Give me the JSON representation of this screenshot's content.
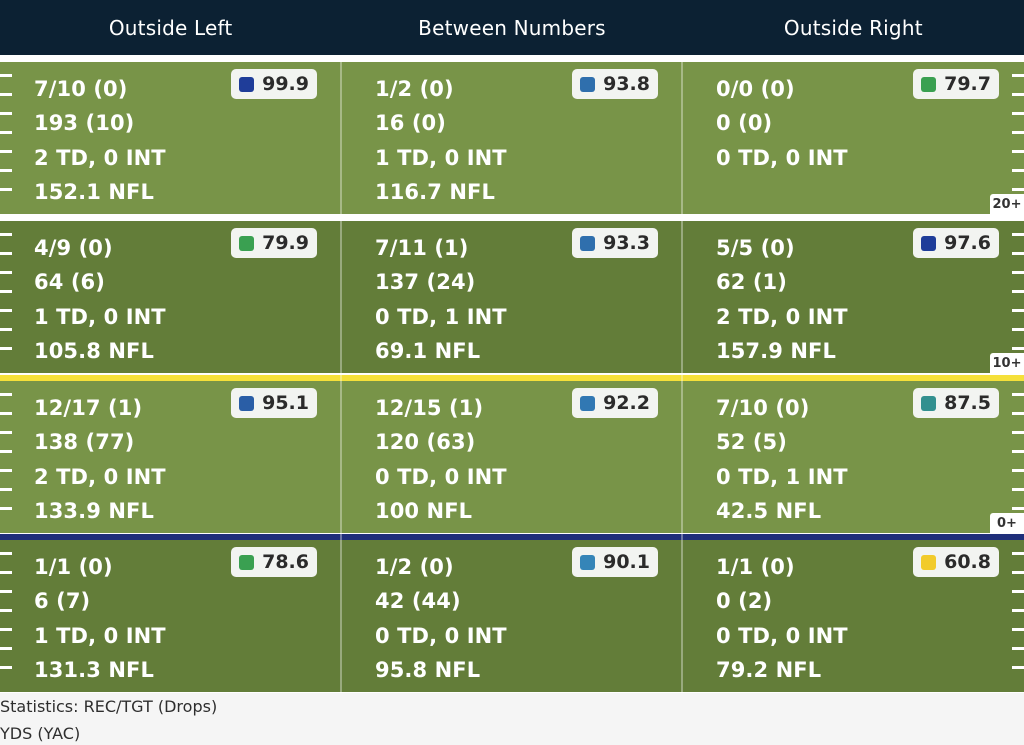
{
  "columns": [
    "Outside Left",
    "Between Numbers",
    "Outside Right"
  ],
  "zones": [
    {
      "label": "20+",
      "cells": [
        {
          "comp": "7/10 (0)",
          "yds": "193 (10)",
          "tdint": "2 TD, 0 INT",
          "rating": "152.1 NFL",
          "grade": "99.9",
          "grade_color": "#1f3d99"
        },
        {
          "comp": "1/2 (0)",
          "yds": "16 (0)",
          "tdint": "1 TD, 0 INT",
          "rating": "116.7 NFL",
          "grade": "93.8",
          "grade_color": "#2f6fad"
        },
        {
          "comp": "0/0 (0)",
          "yds": "0 (0)",
          "tdint": "0 TD, 0 INT",
          "rating": "",
          "grade": "79.7",
          "grade_color": "#3aa051"
        }
      ]
    },
    {
      "label": "10+",
      "cells": [
        {
          "comp": "4/9 (0)",
          "yds": "64 (6)",
          "tdint": "1 TD, 0 INT",
          "rating": "105.8 NFL",
          "grade": "79.9",
          "grade_color": "#3aa051"
        },
        {
          "comp": "7/11 (1)",
          "yds": "137 (24)",
          "tdint": "0 TD, 1 INT",
          "rating": "69.1 NFL",
          "grade": "93.3",
          "grade_color": "#2f6fad"
        },
        {
          "comp": "5/5 (0)",
          "yds": "62 (1)",
          "tdint": "2 TD, 0 INT",
          "rating": "157.9 NFL",
          "grade": "97.6",
          "grade_color": "#1f3d99"
        }
      ]
    },
    {
      "label": "0+",
      "cells": [
        {
          "comp": "12/17 (1)",
          "yds": "138 (77)",
          "tdint": "2 TD, 0 INT",
          "rating": "133.9 NFL",
          "grade": "95.1",
          "grade_color": "#2a5ea6"
        },
        {
          "comp": "12/15 (1)",
          "yds": "120 (63)",
          "tdint": "0 TD, 0 INT",
          "rating": "100 NFL",
          "grade": "92.2",
          "grade_color": "#3178b3"
        },
        {
          "comp": "7/10 (0)",
          "yds": "52 (5)",
          "tdint": "0 TD, 1 INT",
          "rating": "42.5 NFL",
          "grade": "87.5",
          "grade_color": "#33908f"
        }
      ]
    },
    {
      "label": "",
      "cells": [
        {
          "comp": "1/1 (0)",
          "yds": "6 (7)",
          "tdint": "1 TD, 0 INT",
          "rating": "131.3 NFL",
          "grade": "78.6",
          "grade_color": "#3aa051"
        },
        {
          "comp": "1/2 (0)",
          "yds": "42 (44)",
          "tdint": "0 TD, 0 INT",
          "rating": "95.8 NFL",
          "grade": "90.1",
          "grade_color": "#3585b8"
        },
        {
          "comp": "1/1 (0)",
          "yds": "0 (2)",
          "tdint": "0 TD, 0 INT",
          "rating": "79.2 NFL",
          "grade": "60.8",
          "grade_color": "#f2cb2b"
        }
      ]
    }
  ],
  "zone_line_colors": [
    "#ffffff",
    "#ffffff",
    "#f5e03a",
    "#1f2f7a"
  ],
  "legend": {
    "line1": "Statistics: REC/TGT (Drops)",
    "line2": "YDS (YAC)"
  }
}
